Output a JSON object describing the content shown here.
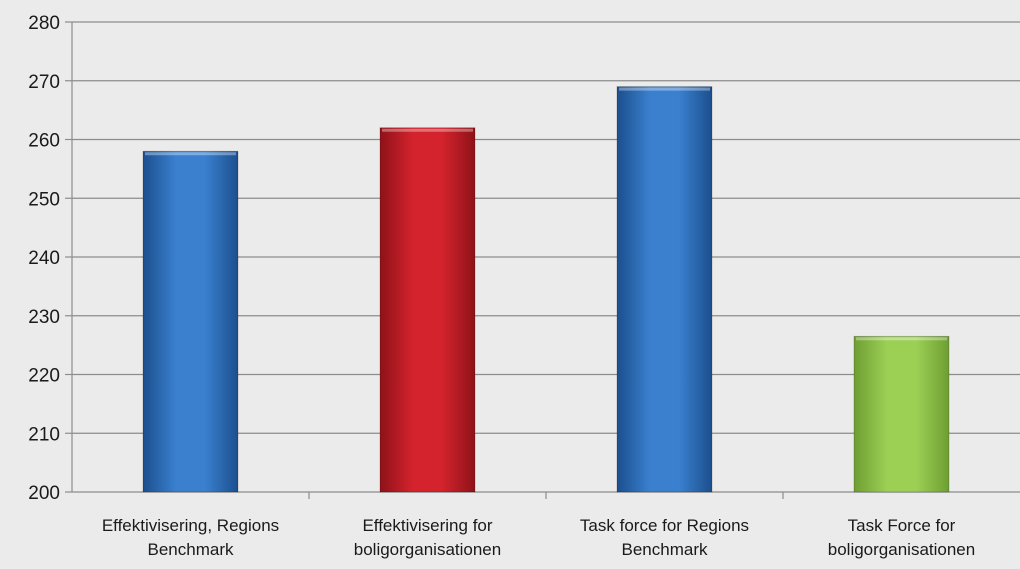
{
  "chart_data": {
    "type": "bar",
    "categories": [
      [
        "Effektivisering, Regions",
        "Benchmark"
      ],
      [
        "Effektivisering for",
        "boligorganisationen"
      ],
      [
        "Task force for Regions",
        "Benchmark"
      ],
      [
        "Task Force for",
        "boligorganisationen"
      ]
    ],
    "values": [
      258,
      262,
      269,
      226.5
    ],
    "colors": [
      "#2f6db5",
      "#c8202a",
      "#2f6db5",
      "#8cc24a"
    ],
    "title": "",
    "xlabel": "",
    "ylabel": "",
    "ylim": [
      200,
      280
    ],
    "yticks": [
      200,
      210,
      220,
      230,
      240,
      250,
      260,
      270,
      280
    ],
    "grid": true,
    "legend": "none"
  }
}
